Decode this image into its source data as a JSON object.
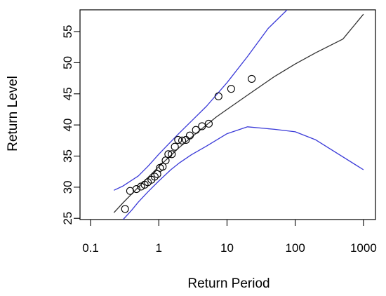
{
  "chart_data": {
    "type": "scatter",
    "xlabel": "Return Period",
    "ylabel": "Return Level",
    "x_scale": "log",
    "xlim": [
      0.07,
      1500
    ],
    "ylim": [
      24.8,
      58.5
    ],
    "x_ticks": [
      0.1,
      1,
      10,
      100,
      1000
    ],
    "x_tick_labels": [
      "0.1",
      "1",
      "10",
      "100",
      "1000"
    ],
    "y_ticks": [
      25,
      30,
      35,
      40,
      45,
      50,
      55
    ],
    "y_tick_labels": [
      "25",
      "30",
      "35",
      "40",
      "45",
      "50",
      "55"
    ],
    "grid": false,
    "colors": {
      "fit": "#333333",
      "ci": "#3a3ad8",
      "points": "#000000"
    },
    "series": [
      {
        "type": "line",
        "role": "fit",
        "x": [
          0.22,
          0.3,
          0.5,
          0.7,
          1,
          1.5,
          2,
          3,
          5,
          7,
          10,
          20,
          50,
          100,
          200,
          500,
          1000
        ],
        "y": [
          25.9,
          27.5,
          30.0,
          31.6,
          33.3,
          35.1,
          36.4,
          38.0,
          40.0,
          41.3,
          42.5,
          44.8,
          47.8,
          49.8,
          51.6,
          53.8,
          57.8
        ]
      },
      {
        "type": "line",
        "role": "upper-ci",
        "x": [
          0.22,
          0.3,
          0.5,
          0.7,
          1,
          1.5,
          2,
          3,
          5,
          10,
          20,
          40,
          76
        ],
        "y": [
          29.5,
          30.2,
          31.8,
          33.4,
          35.3,
          37.3,
          38.7,
          40.6,
          43.0,
          46.8,
          51.0,
          55.5,
          58.5
        ]
      },
      {
        "type": "line",
        "role": "lower-ci",
        "x": [
          0.3,
          0.4,
          0.5,
          0.7,
          1,
          1.5,
          2,
          3,
          5,
          10,
          20,
          50,
          100,
          200,
          1000
        ],
        "y": [
          24.8,
          26.3,
          27.6,
          29.3,
          31.0,
          32.8,
          33.9,
          35.2,
          36.6,
          38.6,
          39.7,
          39.3,
          38.9,
          37.6,
          32.8
        ]
      },
      {
        "type": "scatter",
        "role": "empirical",
        "x": [
          0.32,
          0.38,
          0.47,
          0.55,
          0.62,
          0.69,
          0.78,
          0.87,
          0.95,
          1.04,
          1.14,
          1.26,
          1.38,
          1.55,
          1.72,
          1.92,
          2.2,
          2.5,
          2.85,
          3.5,
          4.3,
          5.4,
          7.5,
          11.5,
          23.0
        ],
        "y": [
          26.5,
          29.4,
          29.7,
          30.1,
          30.4,
          30.8,
          31.2,
          31.7,
          32.1,
          33.1,
          33.3,
          34.3,
          35.3,
          35.3,
          36.5,
          37.6,
          37.5,
          37.6,
          38.3,
          39.2,
          39.8,
          40.2,
          44.6,
          45.8,
          47.4
        ]
      }
    ]
  }
}
